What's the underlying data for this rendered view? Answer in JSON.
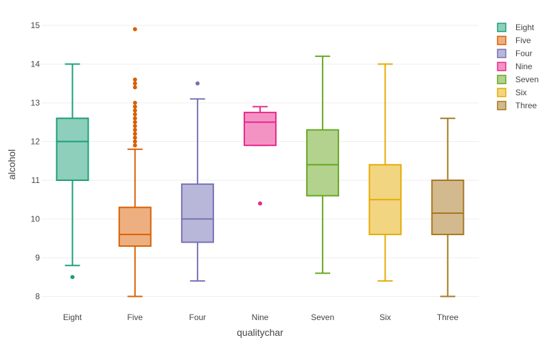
{
  "chart_data": {
    "type": "box",
    "xlabel": "qualitychar",
    "ylabel": "alcohol",
    "ylim": [
      7.85,
      15.3
    ],
    "yticks": [
      8,
      9,
      10,
      11,
      12,
      13,
      14,
      15
    ],
    "grid": true,
    "legend_position": "top-right",
    "categories": [
      "Eight",
      "Five",
      "Four",
      "Nine",
      "Seven",
      "Six",
      "Three"
    ],
    "series": [
      {
        "name": "Eight",
        "color": "#1b9e77",
        "fill": "#8dcfbb",
        "lower_fence": 8.8,
        "q1": 11.0,
        "median": 12.0,
        "q3": 12.6,
        "upper_fence": 14.0,
        "outliers": [
          8.5
        ]
      },
      {
        "name": "Five",
        "color": "#d95f02",
        "fill": "#eeaf80",
        "lower_fence": 8.0,
        "q1": 9.3,
        "median": 9.6,
        "q3": 10.3,
        "upper_fence": 11.8,
        "outliers": [
          11.9,
          12.0,
          12.1,
          12.2,
          12.3,
          12.4,
          12.5,
          12.6,
          12.7,
          12.8,
          12.9,
          13.0,
          13.4,
          13.5,
          13.6,
          14.9
        ]
      },
      {
        "name": "Four",
        "color": "#7570b3",
        "fill": "#b9b7d9",
        "lower_fence": 8.4,
        "q1": 9.4,
        "median": 10.0,
        "q3": 10.9,
        "upper_fence": 13.1,
        "outliers": [
          13.5
        ]
      },
      {
        "name": "Nine",
        "color": "#e7298a",
        "fill": "#f293c4",
        "lower_fence": 11.9,
        "q1": 11.9,
        "median": 12.5,
        "q3": 12.75,
        "upper_fence": 12.9,
        "outliers": [
          10.4
        ]
      },
      {
        "name": "Seven",
        "color": "#66a61e",
        "fill": "#b2d28e",
        "lower_fence": 8.6,
        "q1": 10.6,
        "median": 11.4,
        "q3": 12.3,
        "upper_fence": 14.2,
        "outliers": []
      },
      {
        "name": "Six",
        "color": "#e6ab02",
        "fill": "#f2d580",
        "lower_fence": 8.4,
        "q1": 9.6,
        "median": 10.5,
        "q3": 11.4,
        "upper_fence": 14.0,
        "outliers": []
      },
      {
        "name": "Three",
        "color": "#a6761d",
        "fill": "#d2ba8e",
        "lower_fence": 8.0,
        "q1": 9.6,
        "median": 10.15,
        "q3": 11.0,
        "upper_fence": 12.6,
        "outliers": []
      }
    ]
  }
}
